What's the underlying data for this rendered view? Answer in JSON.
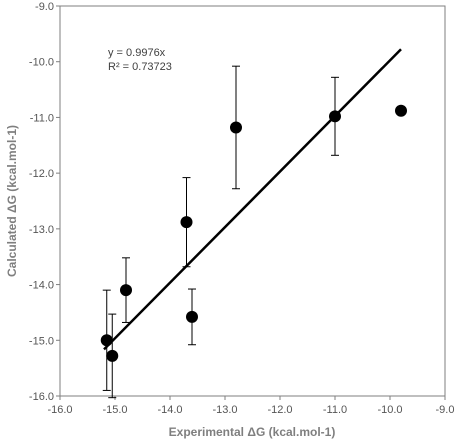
{
  "chart_data": {
    "type": "scatter",
    "xlabel": "Experimental ΔG (kcal.mol-1)",
    "ylabel": "Calculated ΔG (kcal.mol-1)",
    "xlim": [
      -16.0,
      -9.0
    ],
    "ylim": [
      -16.0,
      -9.0
    ],
    "x_ticks": [
      "-16.0",
      "-15.0",
      "-14.0",
      "-13.0",
      "-12.0",
      "-11.0",
      "-10.0",
      "-9.0"
    ],
    "y_ticks": [
      "-9.0",
      "-10.0",
      "-11.0",
      "-12.0",
      "-13.0",
      "-14.0",
      "-15.0",
      "-16.0"
    ],
    "x_tick_values": [
      -16,
      -15,
      -14,
      -13,
      -12,
      -11,
      -10,
      -9
    ],
    "y_tick_values": [
      -9,
      -10,
      -11,
      -12,
      -13,
      -14,
      -15,
      -16
    ],
    "grid": false,
    "points": [
      {
        "x": -15.15,
        "y": -15.0,
        "err": 0.9
      },
      {
        "x": -15.05,
        "y": -15.28,
        "err": 0.75
      },
      {
        "x": -14.8,
        "y": -14.1,
        "err": 0.58
      },
      {
        "x": -13.7,
        "y": -12.88,
        "err": 0.8
      },
      {
        "x": -13.6,
        "y": -14.58,
        "err": 0.5
      },
      {
        "x": -12.8,
        "y": -11.18,
        "err": 1.1
      },
      {
        "x": -11.0,
        "y": -10.98,
        "err": 0.7
      },
      {
        "x": -9.8,
        "y": -10.88,
        "err": 0.07
      }
    ],
    "trendline": {
      "slope": 0.9976,
      "intercept": 0,
      "x_start": -15.2,
      "x_end": -9.8
    },
    "annotation": {
      "equation": "y = 0.9976x",
      "r_squared": "R² = 0.73723"
    },
    "colors": {
      "points": "#000000",
      "line": "#000000",
      "frame": "#7f7f7f",
      "tick_text": "#555555"
    }
  }
}
